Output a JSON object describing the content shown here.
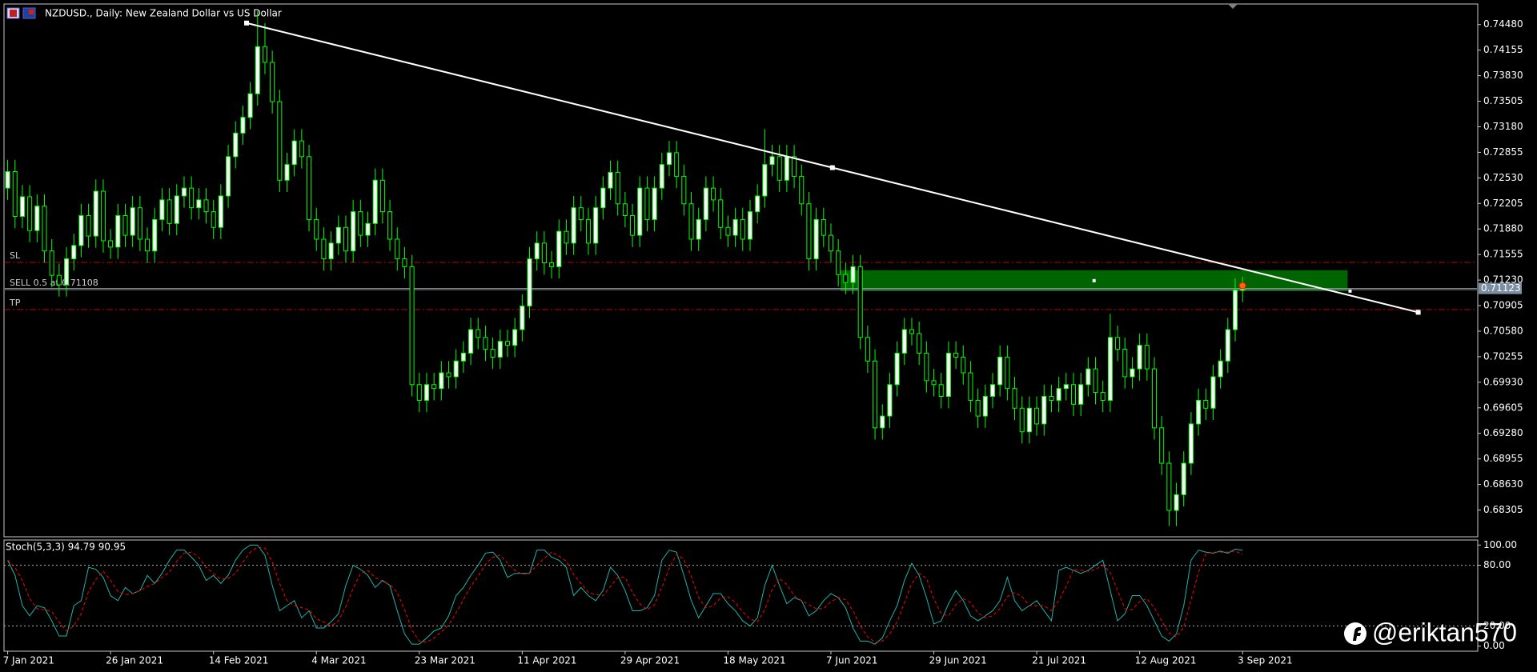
{
  "watermark": "@eriktan570",
  "chart_data": [
    {
      "type": "candlestick",
      "title": "NZDUSD., Daily:  New Zealand Dollar vs US Dollar",
      "open": [
        0.724,
        0.7261,
        0.7204,
        0.7229,
        0.7186,
        0.7217,
        0.716,
        0.7129,
        0.7117,
        0.715,
        0.7167,
        0.7205,
        0.7179,
        0.7236,
        0.7173,
        0.7165,
        0.7205,
        0.718,
        0.7215,
        0.7175,
        0.716,
        0.72,
        0.7225,
        0.7195,
        0.723,
        0.724,
        0.7215,
        0.7225,
        0.721,
        0.719,
        0.723,
        0.728,
        0.731,
        0.733,
        0.736,
        0.742,
        0.74,
        0.735,
        0.725,
        0.727,
        0.73,
        0.728,
        0.72,
        0.7175,
        0.715,
        0.717,
        0.719,
        0.716,
        0.721,
        0.718,
        0.7195,
        0.725,
        0.721,
        0.7175,
        0.715,
        0.714,
        0.699,
        0.697,
        0.699,
        0.6985,
        0.7005,
        0.7,
        0.702,
        0.703,
        0.706,
        0.705,
        0.7035,
        0.7025,
        0.7045,
        0.704,
        0.706,
        0.709,
        0.715,
        0.717,
        0.7145,
        0.714,
        0.7185,
        0.717,
        0.7215,
        0.72,
        0.717,
        0.7215,
        0.724,
        0.726,
        0.722,
        0.7205,
        0.718,
        0.724,
        0.72,
        0.724,
        0.727,
        0.7285,
        0.7255,
        0.722,
        0.7175,
        0.72,
        0.724,
        0.7225,
        0.719,
        0.718,
        0.72,
        0.7175,
        0.721,
        0.723,
        0.727,
        0.728,
        0.725,
        0.728,
        0.7255,
        0.722,
        0.715,
        0.72,
        0.718,
        0.716,
        0.713,
        0.712,
        0.714,
        0.705,
        0.702,
        0.6935,
        0.695,
        0.699,
        0.703,
        0.706,
        0.7055,
        0.703,
        0.6995,
        0.699,
        0.6975,
        0.703,
        0.7025,
        0.7005,
        0.697,
        0.695,
        0.6975,
        0.699,
        0.7025,
        0.6985,
        0.696,
        0.693,
        0.696,
        0.694,
        0.6975,
        0.697,
        0.6985,
        0.699,
        0.6965,
        0.699,
        0.701,
        0.698,
        0.697,
        0.705,
        0.7035,
        0.7,
        0.701,
        0.704,
        0.701,
        0.6935,
        0.689,
        0.683,
        0.685,
        0.689,
        0.694,
        0.697,
        0.696,
        0.7,
        0.702,
        0.706,
        0.711
      ],
      "high": [
        0.7276,
        0.7276,
        0.7244,
        0.7244,
        0.7232,
        0.7232,
        0.7175,
        0.7144,
        0.7165,
        0.7182,
        0.722,
        0.722,
        0.7251,
        0.7251,
        0.7188,
        0.722,
        0.722,
        0.723,
        0.723,
        0.719,
        0.7215,
        0.724,
        0.724,
        0.7245,
        0.7255,
        0.7255,
        0.724,
        0.724,
        0.7225,
        0.7245,
        0.7295,
        0.7325,
        0.7345,
        0.7375,
        0.7465,
        0.745,
        0.7415,
        0.7365,
        0.7285,
        0.7315,
        0.7315,
        0.7295,
        0.7215,
        0.719,
        0.7185,
        0.7205,
        0.7205,
        0.7225,
        0.7225,
        0.721,
        0.7265,
        0.7265,
        0.7225,
        0.719,
        0.7165,
        0.7155,
        0.7005,
        0.7005,
        0.7005,
        0.702,
        0.702,
        0.7035,
        0.7045,
        0.7075,
        0.7075,
        0.7065,
        0.705,
        0.706,
        0.706,
        0.7075,
        0.7105,
        0.7165,
        0.7185,
        0.7185,
        0.716,
        0.72,
        0.72,
        0.723,
        0.723,
        0.7215,
        0.723,
        0.7255,
        0.7275,
        0.7275,
        0.7235,
        0.722,
        0.7255,
        0.7255,
        0.7255,
        0.7285,
        0.73,
        0.73,
        0.727,
        0.7235,
        0.7215,
        0.7255,
        0.7255,
        0.724,
        0.7205,
        0.7215,
        0.7215,
        0.7225,
        0.7245,
        0.7315,
        0.7295,
        0.7295,
        0.7295,
        0.7295,
        0.727,
        0.7235,
        0.7215,
        0.7215,
        0.7195,
        0.7175,
        0.7145,
        0.7155,
        0.7155,
        0.7065,
        0.7035,
        0.6965,
        0.7005,
        0.7045,
        0.7075,
        0.7075,
        0.707,
        0.7045,
        0.701,
        0.7005,
        0.7045,
        0.7045,
        0.704,
        0.702,
        0.6985,
        0.699,
        0.7005,
        0.704,
        0.704,
        0.7,
        0.6975,
        0.6975,
        0.6975,
        0.699,
        0.699,
        0.7,
        0.7005,
        0.7005,
        0.7005,
        0.7025,
        0.7025,
        0.6995,
        0.708,
        0.7065,
        0.705,
        0.7025,
        0.7055,
        0.7055,
        0.7025,
        0.695,
        0.6905,
        0.6865,
        0.6905,
        0.6955,
        0.6985,
        0.6985,
        0.7015,
        0.7035,
        0.7075,
        0.7125,
        0.7127
      ],
      "low": [
        0.7225,
        0.7189,
        0.7189,
        0.7171,
        0.7171,
        0.7145,
        0.7114,
        0.7102,
        0.7102,
        0.7135,
        0.7152,
        0.7164,
        0.7164,
        0.7158,
        0.715,
        0.715,
        0.7165,
        0.7165,
        0.716,
        0.7145,
        0.7145,
        0.7185,
        0.718,
        0.718,
        0.7215,
        0.72,
        0.72,
        0.7195,
        0.7175,
        0.7175,
        0.7215,
        0.7265,
        0.7295,
        0.7315,
        0.7345,
        0.7385,
        0.7335,
        0.7235,
        0.7235,
        0.7255,
        0.7265,
        0.7185,
        0.716,
        0.7135,
        0.7135,
        0.7155,
        0.7145,
        0.7145,
        0.7165,
        0.7165,
        0.718,
        0.7195,
        0.716,
        0.7135,
        0.7125,
        0.6975,
        0.6955,
        0.6955,
        0.697,
        0.697,
        0.6985,
        0.6985,
        0.7005,
        0.7015,
        0.7035,
        0.702,
        0.701,
        0.701,
        0.7025,
        0.7025,
        0.7045,
        0.7075,
        0.7135,
        0.713,
        0.7125,
        0.7125,
        0.7155,
        0.7155,
        0.7185,
        0.7155,
        0.7155,
        0.72,
        0.7225,
        0.7205,
        0.719,
        0.7165,
        0.7165,
        0.7185,
        0.7185,
        0.7225,
        0.7255,
        0.724,
        0.7205,
        0.716,
        0.716,
        0.7185,
        0.721,
        0.7175,
        0.7165,
        0.7165,
        0.716,
        0.716,
        0.7195,
        0.7215,
        0.7255,
        0.7235,
        0.7235,
        0.724,
        0.7205,
        0.7135,
        0.7135,
        0.7165,
        0.7145,
        0.7115,
        0.7105,
        0.7105,
        0.7035,
        0.7005,
        0.692,
        0.692,
        0.6935,
        0.6975,
        0.7015,
        0.704,
        0.7015,
        0.698,
        0.6975,
        0.696,
        0.696,
        0.701,
        0.699,
        0.6955,
        0.6935,
        0.6935,
        0.696,
        0.6975,
        0.697,
        0.6945,
        0.6915,
        0.6915,
        0.6925,
        0.6925,
        0.6955,
        0.6955,
        0.697,
        0.695,
        0.695,
        0.6975,
        0.6965,
        0.6955,
        0.6955,
        0.702,
        0.6985,
        0.6985,
        0.6995,
        0.6995,
        0.692,
        0.6875,
        0.681,
        0.681,
        0.6835,
        0.6875,
        0.6925,
        0.6945,
        0.6945,
        0.6985,
        0.7005,
        0.7045,
        0.7095
      ],
      "close": [
        0.7261,
        0.7204,
        0.7229,
        0.7186,
        0.7217,
        0.716,
        0.7129,
        0.7117,
        0.715,
        0.7167,
        0.7205,
        0.7179,
        0.7236,
        0.7173,
        0.7165,
        0.7205,
        0.718,
        0.7215,
        0.7175,
        0.716,
        0.72,
        0.7225,
        0.7195,
        0.723,
        0.724,
        0.7215,
        0.7225,
        0.721,
        0.719,
        0.723,
        0.728,
        0.731,
        0.733,
        0.736,
        0.742,
        0.74,
        0.735,
        0.725,
        0.727,
        0.73,
        0.728,
        0.72,
        0.7175,
        0.715,
        0.717,
        0.719,
        0.716,
        0.721,
        0.718,
        0.7195,
        0.725,
        0.721,
        0.7175,
        0.715,
        0.714,
        0.699,
        0.697,
        0.699,
        0.6985,
        0.7005,
        0.7,
        0.702,
        0.703,
        0.706,
        0.705,
        0.7035,
        0.7025,
        0.7045,
        0.704,
        0.706,
        0.709,
        0.715,
        0.717,
        0.7145,
        0.714,
        0.7185,
        0.717,
        0.7215,
        0.72,
        0.717,
        0.7215,
        0.724,
        0.726,
        0.722,
        0.7205,
        0.718,
        0.724,
        0.72,
        0.724,
        0.727,
        0.7285,
        0.7255,
        0.722,
        0.7175,
        0.72,
        0.724,
        0.7225,
        0.719,
        0.718,
        0.72,
        0.7175,
        0.721,
        0.723,
        0.727,
        0.728,
        0.725,
        0.728,
        0.7255,
        0.722,
        0.715,
        0.72,
        0.718,
        0.716,
        0.713,
        0.712,
        0.714,
        0.705,
        0.702,
        0.6935,
        0.695,
        0.699,
        0.703,
        0.706,
        0.7055,
        0.703,
        0.6995,
        0.699,
        0.6975,
        0.703,
        0.7025,
        0.7005,
        0.697,
        0.695,
        0.6975,
        0.699,
        0.7025,
        0.6985,
        0.696,
        0.693,
        0.696,
        0.694,
        0.6975,
        0.697,
        0.6985,
        0.699,
        0.6965,
        0.699,
        0.701,
        0.698,
        0.697,
        0.705,
        0.7035,
        0.7,
        0.701,
        0.704,
        0.701,
        0.6935,
        0.689,
        0.683,
        0.685,
        0.689,
        0.694,
        0.697,
        0.696,
        0.7,
        0.702,
        0.706,
        0.711,
        0.7112
      ],
      "up_color": "#ffffff",
      "down_color": "#000000",
      "wick_color": "#00ff00",
      "xlim": [
        -0.5,
        200
      ],
      "ylim": [
        0.67964,
        0.74742
      ],
      "yticks": [
        {
          "value": 0.7448,
          "label": "0.74480"
        },
        0.74155,
        {
          "value": 0.7383,
          "label": "0.73830"
        },
        0.73505,
        {
          "value": 0.7318,
          "label": "0.73180"
        },
        0.72855,
        {
          "value": 0.7253,
          "label": "0.72530"
        },
        0.72205,
        {
          "value": 0.7188,
          "label": "0.71880"
        },
        0.71555,
        {
          "value": 0.7123,
          "label": "0.71230"
        },
        0.70905,
        {
          "value": 0.7058,
          "label": "0.70580"
        },
        0.70255,
        {
          "value": 0.6993,
          "label": "0.69930"
        },
        0.69605,
        {
          "value": 0.6928,
          "label": "0.69280"
        },
        0.68955,
        {
          "value": 0.6863,
          "label": "0.68630"
        },
        0.68305
      ],
      "current_price": 0.71123,
      "levels": [
        {
          "name": "SL",
          "value": 0.71455,
          "color": "#c00000",
          "dash": true
        },
        {
          "name": "SELL 0.5 at 0.71108",
          "value": 0.71108,
          "color": "#808080",
          "dash": false
        },
        {
          "name": "TP",
          "value": 0.70855,
          "color": "#c00000",
          "dash": true
        }
      ],
      "trendline": {
        "x": [
          32.5,
          191.9
        ],
        "y": [
          0.745,
          0.7082
        ],
        "color": "#ffffff"
      },
      "zone": {
        "x": [
          113.3,
          182.3
        ],
        "y": [
          0.7109,
          0.71355
        ],
        "color": "#006400"
      }
    },
    {
      "type": "line",
      "title": "Stoch(5,3,3) 94.79 90.95",
      "series": [
        {
          "color": "#20b2aa",
          "dash": false,
          "values": [
            85,
            70,
            40,
            30,
            40,
            38,
            25,
            10,
            10,
            40,
            45,
            78,
            76,
            68,
            50,
            45,
            58,
            52,
            55,
            70,
            62,
            72,
            85,
            95,
            95,
            88,
            80,
            65,
            70,
            62,
            70,
            85,
            95,
            100,
            100,
            90,
            60,
            35,
            40,
            45,
            28,
            35,
            18,
            18,
            24,
            32,
            60,
            80,
            76,
            70,
            58,
            65,
            60,
            35,
            12,
            2,
            2,
            8,
            15,
            18,
            30,
            50,
            58,
            70,
            80,
            92,
            93,
            85,
            68,
            72,
            72,
            72,
            95,
            95,
            88,
            85,
            78,
            50,
            58,
            50,
            45,
            55,
            78,
            70,
            55,
            35,
            35,
            38,
            50,
            85,
            95,
            93,
            70,
            45,
            28,
            40,
            52,
            52,
            42,
            35,
            25,
            20,
            28,
            60,
            80,
            60,
            42,
            48,
            45,
            30,
            35,
            45,
            52,
            48,
            38,
            18,
            5,
            5,
            2,
            8,
            25,
            40,
            65,
            82,
            70,
            48,
            22,
            25,
            42,
            55,
            45,
            30,
            25,
            30,
            35,
            45,
            68,
            45,
            35,
            40,
            45,
            35,
            25,
            75,
            78,
            75,
            72,
            75,
            80,
            85,
            55,
            25,
            32,
            50,
            50,
            40,
            25,
            10,
            5,
            12,
            40,
            85,
            95,
            93,
            92,
            94,
            92,
            96,
            94.79
          ]
        },
        {
          "color": "#ff0000",
          "dash": true,
          "values": [
            85,
            78,
            65,
            47,
            37,
            36,
            34,
            24,
            15,
            20,
            32,
            54,
            66,
            74,
            65,
            54,
            51,
            52,
            55,
            59,
            62,
            68,
            73,
            84,
            92,
            93,
            88,
            78,
            72,
            66,
            67,
            72,
            83,
            93,
            98,
            97,
            83,
            62,
            45,
            40,
            38,
            36,
            27,
            24,
            20,
            25,
            39,
            57,
            72,
            75,
            68,
            64,
            61,
            53,
            36,
            16,
            5,
            4,
            8,
            14,
            21,
            33,
            46,
            59,
            69,
            81,
            88,
            90,
            82,
            75,
            71,
            72,
            80,
            87,
            93,
            89,
            84,
            71,
            62,
            53,
            51,
            50,
            59,
            68,
            68,
            53,
            42,
            36,
            41,
            58,
            77,
            91,
            86,
            69,
            48,
            38,
            40,
            48,
            49,
            43,
            34,
            27,
            24,
            36,
            56,
            67,
            61,
            50,
            45,
            41,
            37,
            37,
            44,
            48,
            46,
            35,
            20,
            9,
            4,
            5,
            12,
            24,
            43,
            62,
            72,
            67,
            47,
            32,
            30,
            41,
            47,
            43,
            33,
            28,
            30,
            37,
            49,
            53,
            49,
            40,
            40,
            40,
            35,
            45,
            59,
            76,
            75,
            74,
            76,
            80,
            73,
            55,
            37,
            36,
            44,
            47,
            38,
            25,
            13,
            9,
            19,
            46,
            73,
            91,
            93,
            93,
            93,
            94,
            90.95
          ]
        }
      ],
      "xlim": [
        -0.5,
        200
      ],
      "ylim": [
        -5,
        105
      ],
      "yticks": [
        {
          "value": 100,
          "label": "100.00"
        },
        {
          "value": 80,
          "label": "80.00"
        },
        {
          "value": 20,
          "label": "20.00"
        },
        {
          "value": 0,
          "label": "0.00"
        }
      ],
      "levels": [
        80,
        20
      ],
      "xticks": [
        {
          "value": 0,
          "label": "7 Jan 2021"
        },
        {
          "value": 14,
          "label": "26 Jan 2021"
        },
        {
          "value": 28,
          "label": "14 Feb 2021"
        },
        {
          "value": 42,
          "label": "4 Mar 2021"
        },
        {
          "value": 56,
          "label": "23 Mar 2021"
        },
        {
          "value": 70,
          "label": "11 Apr 2021"
        },
        {
          "value": 84,
          "label": "29 Apr 2021"
        },
        {
          "value": 98,
          "label": "18 May 2021"
        },
        {
          "value": 112,
          "label": "7 Jun 2021"
        },
        {
          "value": 126,
          "label": "29 Jun 2021"
        },
        {
          "value": 140,
          "label": "21 Jul 2021"
        },
        {
          "value": 154,
          "label": "12 Aug 2021"
        },
        {
          "value": 168,
          "label": "3 Sep 2021"
        }
      ]
    }
  ]
}
